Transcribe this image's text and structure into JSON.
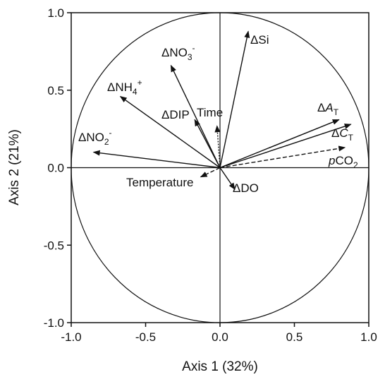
{
  "chart_data": {
    "type": "scatter",
    "subtype": "correlation-circle",
    "xlabel": "Axis 1 (32%)",
    "ylabel": "Axis 2 (21%)",
    "xlim": [
      -1.0,
      1.0
    ],
    "ylim": [
      -1.0,
      1.0
    ],
    "xticks": [
      "-1.0",
      "-0.5",
      "0.0",
      "0.5",
      "1.0"
    ],
    "yticks": [
      "-1.0",
      "-0.5",
      "0.0",
      "0.5",
      "1.0"
    ],
    "grid": false,
    "unit_circle": true,
    "vectors": [
      {
        "id": "si",
        "label": "ΔSi",
        "x": 0.19,
        "y": 0.88,
        "style": "solid"
      },
      {
        "id": "no3",
        "label": "ΔNO3-",
        "x": -0.33,
        "y": 0.66,
        "style": "solid"
      },
      {
        "id": "nh4",
        "label": "ΔNH4+",
        "x": -0.67,
        "y": 0.46,
        "style": "solid"
      },
      {
        "id": "dip",
        "label": "ΔDIP",
        "x": -0.17,
        "y": 0.31,
        "style": "solid"
      },
      {
        "id": "time",
        "label": "Time",
        "x": -0.02,
        "y": 0.27,
        "style": "dotted"
      },
      {
        "id": "no2",
        "label": "ΔNO2-",
        "x": -0.85,
        "y": 0.1,
        "style": "solid"
      },
      {
        "id": "at",
        "label": "ΔAT",
        "x": 0.8,
        "y": 0.31,
        "style": "solid"
      },
      {
        "id": "ct",
        "label": "ΔCT",
        "x": 0.88,
        "y": 0.28,
        "style": "solid"
      },
      {
        "id": "pco2",
        "label": "pCO2",
        "x": 0.84,
        "y": 0.13,
        "style": "dashed"
      },
      {
        "id": "temp",
        "label": "Temperature",
        "x": -0.13,
        "y": -0.06,
        "style": "dashed"
      },
      {
        "id": "do",
        "label": "ΔDO",
        "x": 0.1,
        "y": -0.14,
        "style": "solid"
      }
    ]
  }
}
